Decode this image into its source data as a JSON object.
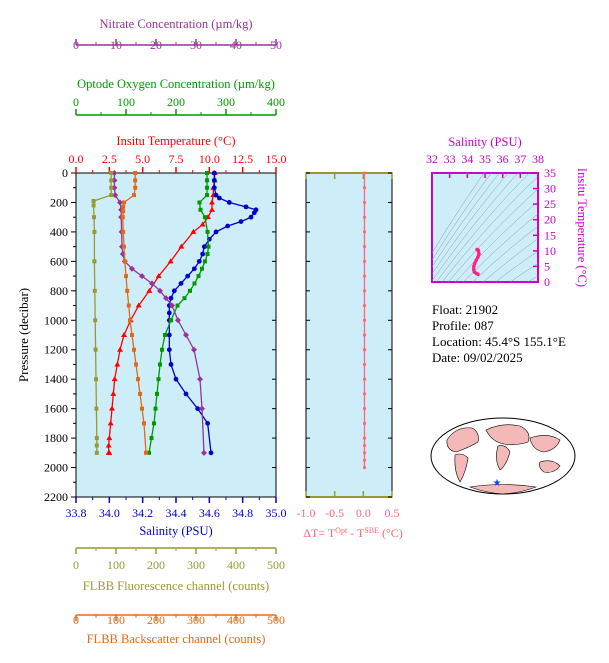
{
  "info": {
    "float": "Float:  21902",
    "profile": "Profile:  087",
    "location": "Location:  45.4°S  155.1°E",
    "date": "Date:  09/02/2025"
  },
  "colors": {
    "temperature": "#ff0000",
    "salinity": "#0000cc",
    "oxygen": "#009900",
    "nitrate": "#993399",
    "fluorescence": "#999933",
    "backscatter": "#e06a1a",
    "delta": "#ff6677",
    "ts_axis": "#cc00cc",
    "plot_bg": "#cdeef8"
  },
  "chart_data": [
    {
      "type": "line",
      "title": "",
      "ylabel": "Pressure (decibar)",
      "ylim": [
        2200,
        0
      ],
      "yticks": [
        0,
        200,
        400,
        600,
        800,
        1000,
        1200,
        1400,
        1600,
        1800,
        2000,
        2200
      ],
      "axes": [
        {
          "label": "Nitrate Concentration (µm/kg)",
          "range": [
            0,
            50
          ],
          "ticks": [
            "0",
            "10",
            "20",
            "30",
            "40",
            "50"
          ]
        },
        {
          "label": "Optode Oxygen Concentration (µm/kg)",
          "range": [
            0,
            400
          ],
          "ticks": [
            "0",
            "100",
            "200",
            "300",
            "400"
          ]
        },
        {
          "label": "Insitu Temperature (°C)",
          "range": [
            0,
            15
          ],
          "ticks": [
            "0.0",
            "2.5",
            "5.0",
            "7.5",
            "10.0",
            "12.5",
            "15.0"
          ]
        },
        {
          "label": "Salinity (PSU)",
          "range": [
            33.8,
            35.0
          ],
          "ticks": [
            "33.8",
            "34.0",
            "34.2",
            "34.4",
            "34.6",
            "34.8",
            "35.0"
          ]
        },
        {
          "label": "FLBB Fluorescence channel (counts)",
          "range": [
            0,
            500
          ],
          "ticks": [
            "0",
            "100",
            "200",
            "300",
            "400",
            "500"
          ]
        },
        {
          "label": "FLBB Backscatter channel (counts)",
          "range": [
            0,
            500
          ],
          "ticks": [
            "0",
            "100",
            "200",
            "300",
            "400",
            "500"
          ]
        }
      ],
      "series": [
        {
          "key": "temperature",
          "axis": 2,
          "marker": "triangle",
          "x": [
            10.4,
            10.4,
            10.3,
            10.3,
            10.2,
            10.2,
            9.9,
            9.5,
            8.8,
            7.9,
            7.1,
            6.2,
            5.5,
            4.7,
            4.1,
            3.6,
            3.3,
            3.1,
            2.9,
            2.8,
            2.7,
            2.6,
            2.5,
            2.45,
            2.45,
            2.5
          ],
          "y": [
            0,
            50,
            100,
            150,
            200,
            250,
            300,
            350,
            400,
            500,
            600,
            700,
            800,
            900,
            1000,
            1100,
            1200,
            1300,
            1400,
            1500,
            1600,
            1700,
            1800,
            1850,
            1900,
            1900
          ]
        },
        {
          "key": "salinity",
          "axis": 3,
          "marker": "circle",
          "x": [
            34.63,
            34.63,
            34.63,
            34.64,
            34.66,
            34.72,
            34.82,
            34.88,
            34.87,
            34.85,
            34.79,
            34.71,
            34.64,
            34.6,
            34.57,
            34.56,
            34.54,
            34.51,
            34.47,
            34.43,
            34.39,
            34.37,
            34.36,
            34.36,
            34.36,
            34.36,
            34.36,
            34.37,
            34.4,
            34.46,
            34.53,
            34.59,
            34.61
          ],
          "y": [
            0,
            50,
            100,
            150,
            170,
            200,
            230,
            250,
            270,
            300,
            330,
            360,
            400,
            450,
            500,
            550,
            600,
            650,
            700,
            750,
            800,
            850,
            900,
            950,
            1000,
            1100,
            1200,
            1300,
            1400,
            1500,
            1600,
            1700,
            1900
          ]
        },
        {
          "key": "oxygen",
          "axis": 1,
          "marker": "square",
          "x": [
            262,
            262,
            262,
            262,
            247,
            249,
            258,
            263,
            265,
            263,
            258,
            252,
            245,
            237,
            228,
            217,
            203,
            190,
            178,
            172,
            168,
            165,
            162,
            159,
            156,
            151,
            146
          ],
          "y": [
            0,
            50,
            100,
            150,
            200,
            250,
            300,
            400,
            500,
            550,
            600,
            650,
            700,
            750,
            800,
            850,
            900,
            1000,
            1100,
            1200,
            1300,
            1400,
            1500,
            1600,
            1700,
            1800,
            1900
          ]
        },
        {
          "key": "nitrate",
          "axis": 0,
          "marker": "diamond",
          "x": [
            9.6,
            9.6,
            9.6,
            9.8,
            11.0,
            11.3,
            11.3,
            11.4,
            11.5,
            11.7,
            12.2,
            14.0,
            16.5,
            19.0,
            21.0,
            22.5,
            24.0,
            25.5,
            27.5,
            29.5,
            31.0,
            31.5,
            32.0
          ],
          "y": [
            0,
            50,
            100,
            150,
            200,
            250,
            300,
            400,
            500,
            550,
            600,
            650,
            700,
            750,
            800,
            850,
            900,
            1000,
            1100,
            1200,
            1400,
            1600,
            1900
          ]
        },
        {
          "key": "fluorescence",
          "axis": 4,
          "marker": "square",
          "x": [
            88,
            88,
            88,
            88,
            44,
            44,
            45,
            46,
            46,
            47,
            48,
            49,
            50,
            51,
            52,
            52,
            52
          ],
          "y": [
            0,
            50,
            100,
            150,
            190,
            220,
            300,
            400,
            600,
            800,
            1000,
            1200,
            1400,
            1600,
            1800,
            1850,
            1900
          ]
        },
        {
          "key": "backscatter",
          "axis": 5,
          "marker": "square",
          "x": [
            148,
            148,
            148,
            145,
            120,
            118,
            118,
            117,
            118,
            120,
            122,
            125,
            128,
            132,
            135,
            140,
            145,
            150,
            155,
            160,
            165,
            170,
            175
          ],
          "y": [
            0,
            50,
            100,
            150,
            200,
            230,
            260,
            300,
            400,
            500,
            600,
            700,
            800,
            900,
            1000,
            1100,
            1200,
            1300,
            1400,
            1500,
            1600,
            1700,
            1900
          ]
        }
      ]
    },
    {
      "type": "scatter",
      "xlabel": "ΔT= T^Opt - T^SBE (°C)",
      "xlim": [
        -1.0,
        0.5
      ],
      "xticks": [
        "-1.0",
        "-0.5",
        "0.0",
        "0.5"
      ],
      "ylim": [
        2200,
        0
      ],
      "x": [
        0.02,
        0.02,
        0.02,
        0.02,
        0.02,
        0.02,
        0.02,
        0.02,
        0.02,
        0.02,
        0.02,
        0.02,
        0.02,
        0.02,
        0.02,
        0.02,
        0.02,
        0.02,
        0.02,
        0.02,
        0.02,
        0.02,
        0.02
      ],
      "y": [
        0,
        100,
        200,
        300,
        400,
        500,
        600,
        700,
        800,
        900,
        1000,
        1100,
        1200,
        1300,
        1400,
        1500,
        1600,
        1700,
        1800,
        1850,
        1900,
        1950,
        2000
      ]
    },
    {
      "type": "scatter",
      "xlabel": "Salinity (PSU)",
      "ylabel": "Insitu Temperature (°C)",
      "xlim": [
        32,
        38
      ],
      "ylim": [
        0,
        35
      ],
      "xticks": [
        "32",
        "33",
        "34",
        "35",
        "36",
        "37",
        "38"
      ],
      "yticks": [
        "0",
        "5",
        "10",
        "15",
        "20",
        "25",
        "30",
        "35"
      ],
      "x": [
        34.55,
        34.6,
        34.63,
        34.66,
        34.6,
        34.5,
        34.42,
        34.37,
        34.36,
        34.4,
        34.5,
        34.6
      ],
      "y": [
        10.4,
        10.3,
        10.0,
        9.0,
        8.0,
        7.0,
        6.0,
        5.0,
        4.0,
        3.2,
        2.8,
        2.5
      ]
    }
  ]
}
